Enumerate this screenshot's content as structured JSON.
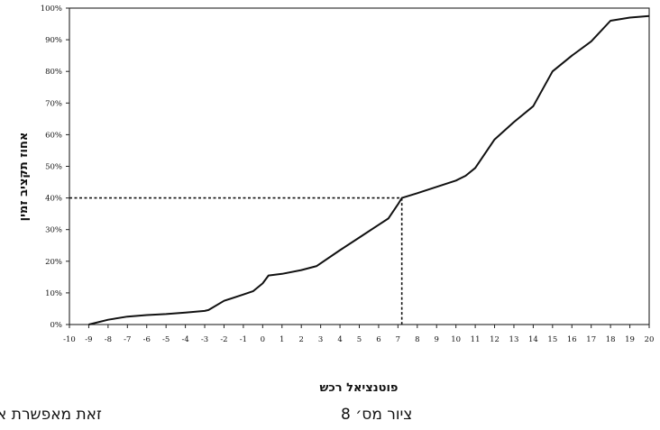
{
  "chart_data": {
    "type": "line",
    "xlabel": "פוטנציאל רכש",
    "ylabel": "אחוז תקציב זמין",
    "x_ticks": [
      "-10",
      "-9",
      "-8",
      "-7",
      "-6",
      "-5",
      "-4",
      "-3",
      "-2",
      "-1",
      "0",
      "1",
      "2",
      "3",
      "4",
      "5",
      "6",
      "7",
      "8",
      "9",
      "10",
      "11",
      "12",
      "13",
      "14",
      "15",
      "16",
      "17",
      "18",
      "19",
      "20"
    ],
    "y_ticks": [
      "0%",
      "10%",
      "20%",
      "30%",
      "40%",
      "50%",
      "60%",
      "70%",
      "80%",
      "90%",
      "100%"
    ],
    "xlim": [
      -10,
      20
    ],
    "ylim": [
      0,
      100
    ],
    "grid": false,
    "series": [
      {
        "x": [
          -9,
          -8,
          -7,
          -6,
          -5,
          -4,
          -3,
          -2.8,
          -2,
          -1,
          -0.5,
          0,
          0.3,
          1,
          2,
          2.8,
          4,
          5,
          6,
          6.5,
          7,
          7.2,
          8,
          9,
          10,
          10.5,
          11,
          12,
          13,
          14,
          15,
          16,
          17,
          18,
          19,
          20
        ],
        "y": [
          0,
          1.5,
          2.5,
          3,
          3.3,
          3.8,
          4.3,
          4.6,
          7.5,
          9.5,
          10.5,
          13,
          15.5,
          16,
          17.2,
          18.5,
          23.5,
          27.5,
          31.5,
          33.5,
          38,
          40,
          41.5,
          43.5,
          45.5,
          47,
          49.5,
          58.5,
          64,
          69,
          80,
          85,
          89.5,
          96,
          97,
          97.5
        ]
      }
    ],
    "reference_point": {
      "x": 7.2,
      "y": 40
    }
  },
  "captions": {
    "figure": "ציור מס׳ 8",
    "left_text": "זאת מאפשרת א"
  }
}
